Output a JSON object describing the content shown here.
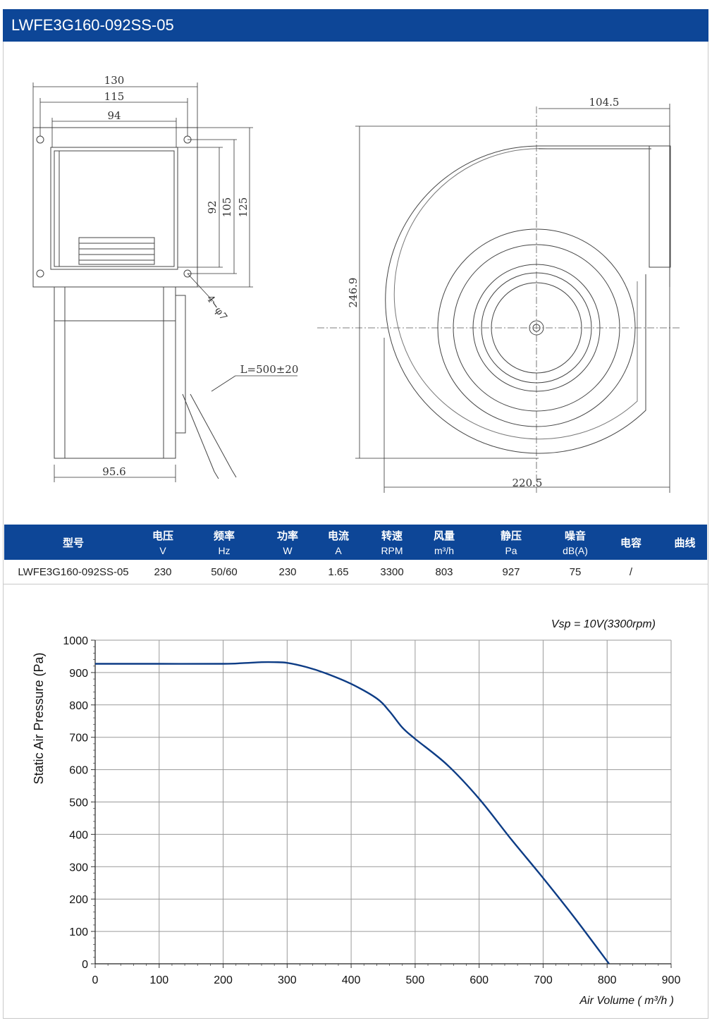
{
  "header": {
    "title": "LWFE3G160-092SS-05"
  },
  "drawing": {
    "dims": {
      "w130": "130",
      "w115": "115",
      "w94": "94",
      "h92": "92",
      "h105": "105",
      "h125": "125",
      "holes": "4−φ7",
      "w95": "95.6",
      "cable": "L=500±20",
      "d104": "104.5",
      "h246": "246.9",
      "w220": "220.5"
    }
  },
  "specs": {
    "headers": [
      {
        "label": "型号",
        "unit": ""
      },
      {
        "label": "电压",
        "unit": "V"
      },
      {
        "label": "频率",
        "unit": "Hz"
      },
      {
        "label": "功率",
        "unit": "W"
      },
      {
        "label": "电流",
        "unit": "A"
      },
      {
        "label": "转速",
        "unit": "RPM"
      },
      {
        "label": "风量",
        "unit": "m³/h"
      },
      {
        "label": "静压",
        "unit": "Pa"
      },
      {
        "label": "噪音",
        "unit": "dB(A)"
      },
      {
        "label": "电容",
        "unit": ""
      },
      {
        "label": "曲线",
        "unit": ""
      }
    ],
    "row": [
      "LWFE3G160-092SS-05",
      "230",
      "50/60",
      "230",
      "1.65",
      "3300",
      "803",
      "927",
      "75",
      "/"
    ]
  },
  "chart_data": {
    "type": "line",
    "annotation": "Vsp = 10V(3300rpm)",
    "xlabel": "Air Volume ( m³/h )",
    "ylabel": "Static Air Pressure  (Pa)",
    "xlim": [
      0,
      900
    ],
    "ylim": [
      0,
      1000
    ],
    "xticks": [
      0,
      100,
      200,
      300,
      400,
      500,
      600,
      700,
      800,
      900
    ],
    "yticks": [
      0,
      100,
      200,
      300,
      400,
      500,
      600,
      700,
      800,
      900,
      1000
    ],
    "grid": true,
    "series_color": "#0d3c85",
    "series": [
      {
        "x": [
          0,
          100,
          200,
          230,
          260,
          280,
          300,
          330,
          360,
          400,
          440,
          460,
          480,
          500,
          550,
          600,
          650,
          700,
          750,
          803
        ],
        "y": [
          927,
          927,
          927,
          929,
          932,
          932,
          930,
          917,
          898,
          865,
          820,
          780,
          730,
          695,
          615,
          510,
          385,
          265,
          140,
          0
        ]
      }
    ]
  }
}
